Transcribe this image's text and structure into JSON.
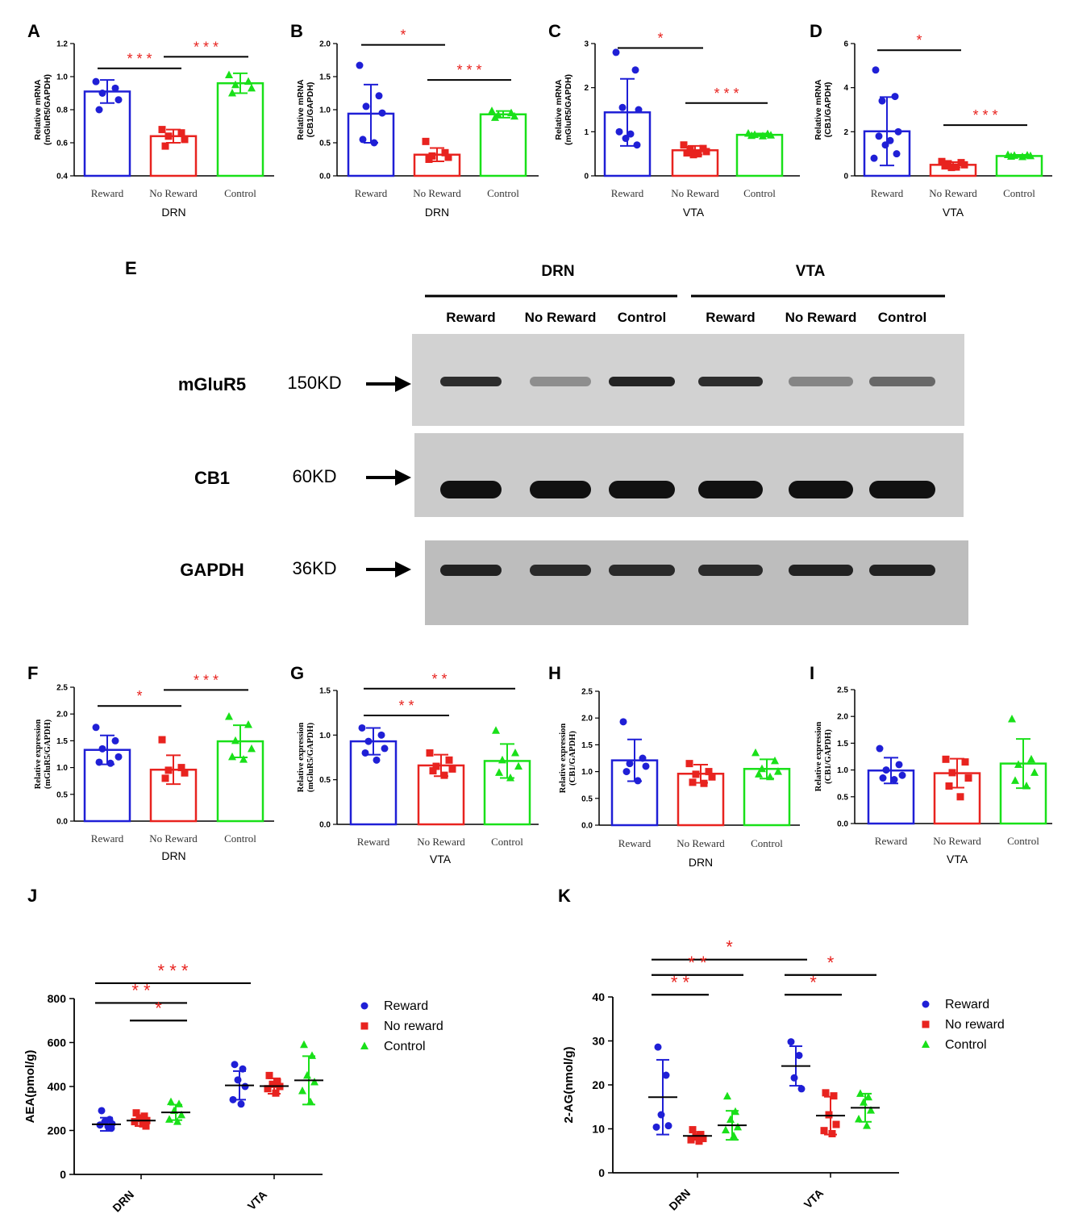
{
  "colors": {
    "reward": "#1f1fd6",
    "no_reward": "#e8231f",
    "control": "#19e019",
    "sig": "#e8231f",
    "axis": "#000000"
  },
  "western_blot": {
    "panel_label": "E",
    "regions": [
      "DRN",
      "VTA"
    ],
    "lanes": [
      "Reward",
      "No Reward",
      "Control",
      "Reward",
      "No Reward",
      "Control"
    ],
    "rows": [
      {
        "protein": "mGluR5",
        "size": "150KD"
      },
      {
        "protein": "CB1",
        "size": "60KD"
      },
      {
        "protein": "GAPDH",
        "size": "36KD"
      }
    ]
  },
  "chart_data": [
    {
      "panel": "A",
      "type": "bar",
      "ylabel": "Relative mRNA\n(mGluR5/GAPDH)",
      "xlabel": "DRN",
      "categories": [
        "Reward",
        "No Reward",
        "Control"
      ],
      "ylim": [
        0.4,
        1.2
      ],
      "yticks": [
        "0.4",
        "0.6",
        "0.8",
        "1.0",
        "1.2"
      ],
      "values": [
        0.91,
        0.64,
        0.96
      ],
      "errors": [
        0.07,
        0.04,
        0.06
      ],
      "points": [
        [
          0.97,
          0.93,
          0.9,
          0.86,
          0.8
        ],
        [
          0.68,
          0.66,
          0.64,
          0.62,
          0.58
        ],
        [
          1.01,
          0.97,
          0.95,
          0.93,
          0.9
        ]
      ],
      "sig": [
        {
          "from": 0,
          "to": 1,
          "label": "* * *",
          "level": 1.05
        },
        {
          "from": 1,
          "to": 2,
          "label": "* * *",
          "level": 1.12
        }
      ]
    },
    {
      "panel": "B",
      "type": "bar",
      "ylabel": "Relative mRNA\n(CB1/GAPDH)",
      "xlabel": "DRN",
      "categories": [
        "Reward",
        "No Reward",
        "Control"
      ],
      "ylim": [
        0.0,
        2.0
      ],
      "yticks": [
        "0.0",
        "0.5",
        "1.0",
        "1.5",
        "2.0"
      ],
      "values": [
        0.94,
        0.32,
        0.93
      ],
      "errors": [
        0.44,
        0.1,
        0.05
      ],
      "points": [
        [
          1.67,
          1.21,
          1.05,
          0.95,
          0.55,
          0.5
        ],
        [
          0.52,
          0.35,
          0.3,
          0.28,
          0.25
        ],
        [
          0.98,
          0.95,
          0.92,
          0.9,
          0.88
        ]
      ],
      "sig": [
        {
          "from": 0,
          "to": 1,
          "label": "*",
          "level": 1.98
        },
        {
          "from": 1,
          "to": 2,
          "label": "* * *",
          "level": 1.45
        }
      ]
    },
    {
      "panel": "C",
      "type": "bar",
      "ylabel": "Relative mRNA\n(mGluR5/GAPDH)",
      "xlabel": "VTA",
      "categories": [
        "Reward",
        "No Reward",
        "Control"
      ],
      "ylim": [
        0,
        3
      ],
      "yticks": [
        "0",
        "1",
        "2",
        "3"
      ],
      "values": [
        1.44,
        0.58,
        0.93
      ],
      "errors": [
        0.76,
        0.1,
        0.03
      ],
      "points": [
        [
          2.8,
          2.4,
          1.55,
          1.5,
          1.0,
          0.95,
          0.85,
          0.7
        ],
        [
          0.7,
          0.62,
          0.6,
          0.55,
          0.52,
          0.5,
          0.48
        ],
        [
          0.96,
          0.95,
          0.93,
          0.92,
          0.91,
          0.9
        ]
      ],
      "sig": [
        {
          "from": 0,
          "to": 1,
          "label": "*",
          "level": 2.9
        },
        {
          "from": 1,
          "to": 2,
          "label": "* * *",
          "level": 1.65
        }
      ]
    },
    {
      "panel": "D",
      "type": "bar",
      "ylabel": "Relative mRNA\n(CB1/GAPDH)",
      "xlabel": "VTA",
      "categories": [
        "Reward",
        "No Reward",
        "Control"
      ],
      "ylim": [
        0,
        6
      ],
      "yticks": [
        "0",
        "2",
        "4",
        "6"
      ],
      "values": [
        2.02,
        0.5,
        0.9
      ],
      "errors": [
        1.55,
        0.12,
        0.05
      ],
      "points": [
        [
          4.8,
          3.6,
          3.4,
          2.0,
          1.8,
          1.6,
          1.4,
          1.0,
          0.8
        ],
        [
          0.65,
          0.6,
          0.55,
          0.5,
          0.45,
          0.4,
          0.38
        ],
        [
          0.95,
          0.93,
          0.92,
          0.9,
          0.88,
          0.86
        ]
      ],
      "sig": [
        {
          "from": 0,
          "to": 1,
          "label": "*",
          "level": 5.7
        },
        {
          "from": 1,
          "to": 2,
          "label": "* * *",
          "level": 2.3
        }
      ]
    },
    {
      "panel": "F",
      "type": "bar",
      "ylabel": "Relative expression\n(mGluR5/GAPDH)",
      "xlabel": "DRN",
      "categories": [
        "Reward",
        "No Reward",
        "Control"
      ],
      "ylim": [
        0.0,
        2.5
      ],
      "yticks": [
        "0.0",
        "0.5",
        "1.0",
        "1.5",
        "2.0",
        "2.5"
      ],
      "values": [
        1.33,
        0.96,
        1.49
      ],
      "errors": [
        0.27,
        0.27,
        0.3
      ],
      "points": [
        [
          1.75,
          1.5,
          1.35,
          1.2,
          1.1,
          1.08
        ],
        [
          1.52,
          1.0,
          0.95,
          0.9,
          0.8
        ],
        [
          1.95,
          1.8,
          1.5,
          1.35,
          1.2,
          1.15
        ]
      ],
      "sig": [
        {
          "from": 0,
          "to": 1,
          "label": "*",
          "level": 2.15
        },
        {
          "from": 1,
          "to": 2,
          "label": "* * *",
          "level": 2.45
        }
      ]
    },
    {
      "panel": "G",
      "type": "bar",
      "ylabel": "Relative expression\n(mGluR5/GAPDH)",
      "xlabel": "VTA",
      "categories": [
        "Reward",
        "No Reward",
        "Control"
      ],
      "ylim": [
        0.0,
        1.5
      ],
      "yticks": [
        "0.0",
        "0.5",
        "1.0",
        "1.5"
      ],
      "values": [
        0.93,
        0.66,
        0.71
      ],
      "errors": [
        0.15,
        0.12,
        0.19
      ],
      "points": [
        [
          1.08,
          1.0,
          0.93,
          0.85,
          0.8,
          0.72
        ],
        [
          0.8,
          0.72,
          0.65,
          0.62,
          0.6,
          0.55
        ],
        [
          1.05,
          0.8,
          0.72,
          0.65,
          0.58,
          0.52
        ]
      ],
      "sig": [
        {
          "from": 0,
          "to": 1,
          "label": "* *",
          "level": 1.22
        },
        {
          "from": 0,
          "to": 2,
          "label": "* *",
          "level": 1.52
        }
      ]
    },
    {
      "panel": "H",
      "type": "bar",
      "ylabel": "Relative expression\n(CB1/GAPDH)",
      "xlabel": "DRN",
      "categories": [
        "Reward",
        "No Reward",
        "Control"
      ],
      "ylim": [
        0.0,
        2.5
      ],
      "yticks": [
        "0.0",
        "0.5",
        "1.0",
        "1.5",
        "2.0",
        "2.5"
      ],
      "values": [
        1.21,
        0.96,
        1.05
      ],
      "errors": [
        0.39,
        0.17,
        0.18
      ],
      "points": [
        [
          1.93,
          1.25,
          1.15,
          1.1,
          1.0,
          0.83
        ],
        [
          1.15,
          1.0,
          0.95,
          0.9,
          0.8,
          0.78
        ],
        [
          1.35,
          1.2,
          1.05,
          1.0,
          0.95,
          0.9
        ]
      ],
      "sig": []
    },
    {
      "panel": "I",
      "type": "bar",
      "ylabel": "Relative expression\n(CB1/GAPDH)",
      "xlabel": "VTA",
      "categories": [
        "Reward",
        "No Reward",
        "Control"
      ],
      "ylim": [
        0.0,
        2.5
      ],
      "yticks": [
        "0.0",
        "0.5",
        "1.0",
        "1.5",
        "2.0",
        "2.5"
      ],
      "values": [
        0.99,
        0.94,
        1.12
      ],
      "errors": [
        0.24,
        0.27,
        0.46
      ],
      "points": [
        [
          1.4,
          1.1,
          1.0,
          0.9,
          0.85,
          0.82
        ],
        [
          1.2,
          1.15,
          0.95,
          0.85,
          0.7,
          0.5
        ],
        [
          1.95,
          1.2,
          1.1,
          0.95,
          0.8,
          0.7
        ]
      ],
      "sig": []
    },
    {
      "panel": "J",
      "type": "scatter",
      "ylabel": "AEA(pmol/g)",
      "ylim": [
        0,
        800
      ],
      "yticks": [
        "0",
        "200",
        "400",
        "600",
        "800"
      ],
      "categories": [
        "DRN",
        "VTA"
      ],
      "series": [
        {
          "name": "Reward",
          "means": [
            228,
            405
          ],
          "sd": [
            30,
            65
          ],
          "points": [
            [
              290,
              250,
              240,
              230,
              225,
              218,
              210
            ],
            [
              500,
              480,
              430,
              400,
              340,
              320
            ]
          ]
        },
        {
          "name": "No reward",
          "means": [
            245,
            402
          ],
          "sd": [
            25,
            35
          ],
          "points": [
            [
              280,
              265,
              255,
              245,
              240,
              230,
              220
            ],
            [
              450,
              420,
              410,
              400,
              390,
              370
            ]
          ]
        },
        {
          "name": "Control",
          "means": [
            282,
            428
          ],
          "sd": [
            35,
            110
          ],
          "points": [
            [
              330,
              320,
              290,
              270,
              250,
              240
            ],
            [
              590,
              540,
              450,
              420,
              380,
              330
            ]
          ]
        }
      ],
      "sig": [
        {
          "label": "* * *",
          "level": 870,
          "from": [
            0,
            0
          ],
          "to": [
            1,
            0
          ]
        },
        {
          "label": "* *",
          "level": 780,
          "from": [
            0,
            0
          ],
          "to": [
            0,
            2
          ]
        },
        {
          "label": "*",
          "level": 700,
          "from": [
            0,
            1
          ],
          "to": [
            0,
            2
          ]
        }
      ],
      "legend": [
        "Reward",
        "No reward",
        "Control"
      ]
    },
    {
      "panel": "K",
      "type": "scatter",
      "ylabel": "2-AG(nmol/g)",
      "ylim": [
        0,
        40
      ],
      "yticks": [
        "0",
        "10",
        "20",
        "30",
        "40"
      ],
      "categories": [
        "DRN",
        "VTA"
      ],
      "series": [
        {
          "name": "Reward",
          "means": [
            17.2,
            24.3
          ],
          "sd": [
            8.5,
            4.5
          ],
          "points": [
            [
              28.6,
              22.2,
              13.2,
              10.7,
              10.4
            ],
            [
              29.8,
              26.7,
              21.6,
              19.1
            ]
          ]
        },
        {
          "name": "No reward",
          "means": [
            8.4,
            13.0
          ],
          "sd": [
            0.9,
            4.3
          ],
          "points": [
            [
              9.8,
              8.7,
              8.2,
              7.8,
              7.5,
              7.2
            ],
            [
              18.2,
              17.5,
              13.2,
              11.0,
              9.6,
              8.9
            ]
          ]
        },
        {
          "name": "Control",
          "means": [
            10.8,
            14.8
          ],
          "sd": [
            3.3,
            3.2
          ],
          "points": [
            [
              17.4,
              13.9,
              12.1,
              10.4,
              9.7,
              8.4
            ],
            [
              18.0,
              17.2,
              16.0,
              14.2,
              12.2,
              10.7
            ]
          ]
        }
      ],
      "sig": [
        {
          "label": "*",
          "level": 48.5,
          "from": [
            0,
            0
          ],
          "to": [
            1,
            0
          ]
        },
        {
          "label": "* *",
          "level": 45.0,
          "from": [
            0,
            0
          ],
          "to": [
            0,
            2
          ]
        },
        {
          "label": "* *",
          "level": 40.5,
          "from": [
            0,
            0
          ],
          "to": [
            0,
            1
          ]
        },
        {
          "label": "*",
          "level": 45.0,
          "from": [
            1,
            0
          ],
          "to": [
            1,
            2
          ]
        },
        {
          "label": "*",
          "level": 40.5,
          "from": [
            1,
            0
          ],
          "to": [
            1,
            1
          ]
        }
      ],
      "legend": [
        "Reward",
        "No reward",
        "Control"
      ]
    }
  ]
}
